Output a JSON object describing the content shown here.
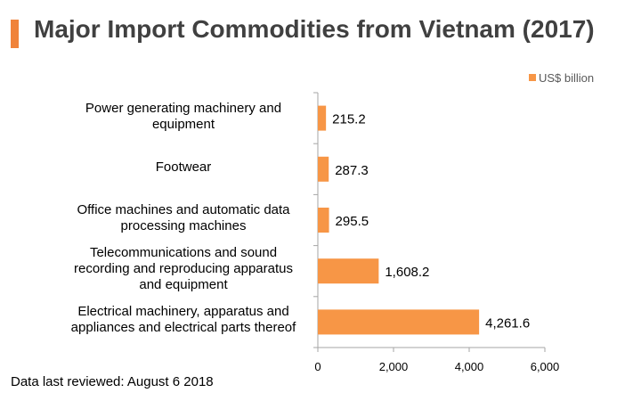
{
  "header": {
    "title": "Major Import Commodities from Vietnam (2017)",
    "accent_color": "#f0833a"
  },
  "footer": {
    "note": "Data last reviewed: August 6 2018"
  },
  "chart_data": {
    "type": "bar",
    "orientation": "horizontal",
    "categories": [
      [
        "Power generating machinery and",
        "equipment"
      ],
      [
        "Footwear"
      ],
      [
        "Office machines and automatic data",
        "processing machines"
      ],
      [
        "Telecommunications and sound",
        "recording and reproducing apparatus",
        "and equipment"
      ],
      [
        "Electrical machinery, apparatus and",
        "appliances and electrical parts thereof"
      ]
    ],
    "series": [
      {
        "name": "US$ billion",
        "color": "#f79646",
        "values": [
          215.2,
          287.3,
          295.5,
          1608.2,
          4261.6
        ],
        "value_labels": [
          "215.2",
          "287.3",
          "295.5",
          "1,608.2",
          "4,261.6"
        ]
      }
    ],
    "xlim": [
      0,
      6000
    ],
    "xticks": [
      0,
      2000,
      4000,
      6000
    ],
    "xtick_labels": [
      "0",
      "2,000",
      "4,000",
      "6,000"
    ],
    "legend_position": "top-right",
    "grid": false
  }
}
